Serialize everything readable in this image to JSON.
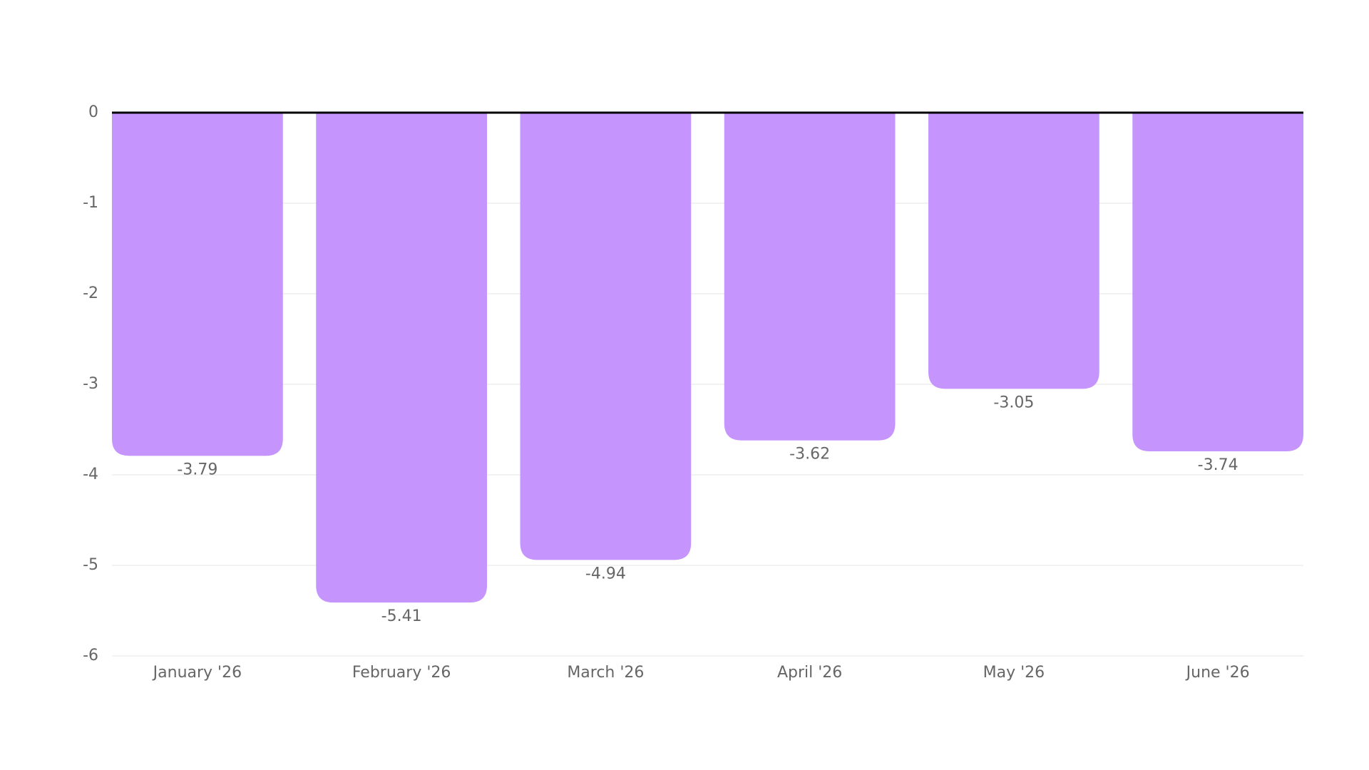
{
  "chart_data": {
    "type": "bar",
    "categories": [
      "January '26",
      "February '26",
      "March '26",
      "April '26",
      "May '26",
      "June '26"
    ],
    "values": [
      -3.79,
      -5.41,
      -4.94,
      -3.62,
      -3.05,
      -3.74
    ],
    "color": "#c595fd",
    "ylim": [
      -6,
      0
    ],
    "yticks": [
      0,
      -1,
      -2,
      -3,
      -4,
      -5,
      -6
    ],
    "grid": true
  }
}
